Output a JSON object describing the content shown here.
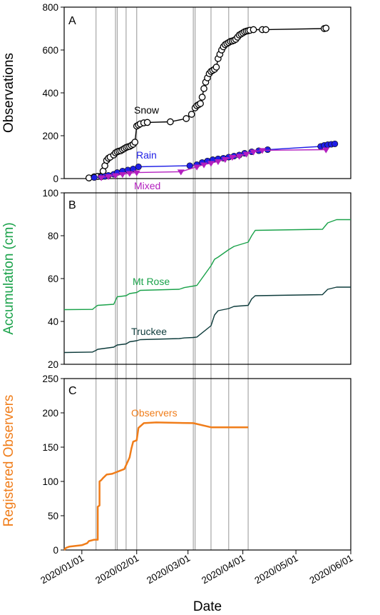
{
  "x_axis": {
    "label": "Date",
    "tick_labels": [
      "2020/01/01",
      "2020/02/01",
      "2020/03/01",
      "2020/04/01",
      "2020/05/01",
      "2020/06/01"
    ],
    "range": [
      "2019-12-22",
      "2020-06-01"
    ]
  },
  "event_lines": [
    "2020-01-09",
    "2020-01-20",
    "2020-01-21",
    "2020-01-26",
    "2020-02-01",
    "2020-03-04",
    "2020-03-05",
    "2020-03-14",
    "2020-03-24",
    "2020-04-04"
  ],
  "colors": {
    "snow": "#000000",
    "rain": "#1f1fe6",
    "mixed": "#b31fbf",
    "mt_rose": "#1aa24a",
    "truckee": "#0d3b3b",
    "observers": "#f07d1a",
    "event_line": "#a6a6a6"
  },
  "chart_data": [
    {
      "panel": "A",
      "type": "scatter",
      "ylabel": "Observations",
      "ylim": [
        0,
        800
      ],
      "yticks": [
        "0",
        "200",
        "400",
        "600",
        "800"
      ],
      "series": [
        {
          "name": "Snow",
          "marker": "circle-open",
          "x": [
            "2020-01-05",
            "2020-01-08",
            "2020-01-10",
            "2020-01-12",
            "2020-01-13",
            "2020-01-14",
            "2020-01-15",
            "2020-01-16",
            "2020-01-17",
            "2020-01-19",
            "2020-01-20",
            "2020-01-21",
            "2020-01-22",
            "2020-01-23",
            "2020-01-24",
            "2020-01-25",
            "2020-01-26",
            "2020-01-27",
            "2020-01-28",
            "2020-01-29",
            "2020-01-30",
            "2020-01-31",
            "2020-02-01",
            "2020-02-02",
            "2020-02-03",
            "2020-02-05",
            "2020-02-07",
            "2020-02-20",
            "2020-02-29",
            "2020-03-03",
            "2020-03-05",
            "2020-03-06",
            "2020-03-07",
            "2020-03-08",
            "2020-03-09",
            "2020-03-10",
            "2020-03-11",
            "2020-03-12",
            "2020-03-13",
            "2020-03-14",
            "2020-03-15",
            "2020-03-16",
            "2020-03-17",
            "2020-03-18",
            "2020-03-19",
            "2020-03-20",
            "2020-03-21",
            "2020-03-22",
            "2020-03-23",
            "2020-03-24",
            "2020-03-25",
            "2020-03-26",
            "2020-03-27",
            "2020-03-28",
            "2020-03-29",
            "2020-03-30",
            "2020-03-31",
            "2020-04-01",
            "2020-04-02",
            "2020-04-03",
            "2020-04-04",
            "2020-04-05",
            "2020-04-07",
            "2020-04-12",
            "2020-04-14",
            "2020-05-17",
            "2020-05-18"
          ],
          "y": [
            3,
            8,
            10,
            12,
            35,
            60,
            85,
            95,
            100,
            110,
            120,
            125,
            128,
            130,
            135,
            140,
            145,
            148,
            150,
            155,
            160,
            170,
            245,
            250,
            255,
            260,
            262,
            265,
            280,
            300,
            330,
            340,
            345,
            350,
            380,
            420,
            450,
            470,
            490,
            500,
            505,
            510,
            520,
            560,
            580,
            600,
            615,
            625,
            630,
            635,
            640,
            642,
            645,
            650,
            660,
            670,
            675,
            680,
            685,
            688,
            690,
            692,
            695,
            695,
            695,
            700,
            702
          ]
        },
        {
          "name": "Rain",
          "marker": "circle-filled",
          "x": [
            "2020-01-08",
            "2020-01-12",
            "2020-01-14",
            "2020-01-16",
            "2020-01-19",
            "2020-01-21",
            "2020-01-24",
            "2020-01-27",
            "2020-01-30",
            "2020-02-02",
            "2020-03-02",
            "2020-03-06",
            "2020-03-09",
            "2020-03-12",
            "2020-03-15",
            "2020-03-18",
            "2020-03-21",
            "2020-03-24",
            "2020-03-27",
            "2020-03-30",
            "2020-04-02",
            "2020-04-06",
            "2020-04-10",
            "2020-04-15",
            "2020-05-15",
            "2020-05-17",
            "2020-05-19",
            "2020-05-21",
            "2020-05-23"
          ],
          "y": [
            5,
            8,
            10,
            15,
            20,
            28,
            35,
            40,
            45,
            55,
            60,
            65,
            75,
            82,
            88,
            92,
            95,
            100,
            105,
            110,
            118,
            125,
            130,
            135,
            150,
            155,
            158,
            160,
            162
          ]
        },
        {
          "name": "Mixed",
          "marker": "triangle-down",
          "x": [
            "2020-01-12",
            "2020-01-16",
            "2020-01-20",
            "2020-01-24",
            "2020-01-28",
            "2020-02-01",
            "2020-02-26",
            "2020-03-06",
            "2020-03-10",
            "2020-03-14",
            "2020-03-18",
            "2020-03-22",
            "2020-03-26",
            "2020-03-30",
            "2020-04-03",
            "2020-04-07",
            "2020-04-12",
            "2020-05-18"
          ],
          "y": [
            5,
            10,
            15,
            20,
            25,
            28,
            32,
            55,
            65,
            72,
            80,
            90,
            100,
            105,
            115,
            125,
            132,
            135
          ]
        }
      ]
    },
    {
      "panel": "B",
      "type": "line",
      "ylabel": "Accumulation (cm)",
      "ylim": [
        20,
        100
      ],
      "yticks": [
        "20",
        "40",
        "60",
        "80",
        "100"
      ],
      "series": [
        {
          "name": "Mt Rose",
          "x": [
            "2019-12-22",
            "2020-01-07",
            "2020-01-09",
            "2020-01-10",
            "2020-01-19",
            "2020-01-21",
            "2020-01-26",
            "2020-01-28",
            "2020-02-01",
            "2020-02-03",
            "2020-02-25",
            "2020-02-28",
            "2020-03-04",
            "2020-03-06",
            "2020-03-14",
            "2020-03-16",
            "2020-03-18",
            "2020-03-24",
            "2020-03-27",
            "2020-04-04",
            "2020-04-06",
            "2020-04-08",
            "2020-05-16",
            "2020-05-19",
            "2020-05-24",
            "2020-06-01"
          ],
          "y": [
            45.5,
            45.6,
            47,
            47.5,
            48,
            51.5,
            52,
            53,
            53.5,
            54.5,
            55,
            55.8,
            56.5,
            56.8,
            66,
            69,
            70,
            73.5,
            75,
            77,
            80,
            82.5,
            83,
            86,
            87.5,
            87.5
          ]
        },
        {
          "name": "Truckee",
          "x": [
            "2019-12-22",
            "2020-01-07",
            "2020-01-09",
            "2020-01-10",
            "2020-01-19",
            "2020-01-21",
            "2020-01-26",
            "2020-01-28",
            "2020-02-01",
            "2020-02-03",
            "2020-02-25",
            "2020-02-28",
            "2020-03-04",
            "2020-03-06",
            "2020-03-14",
            "2020-03-16",
            "2020-03-18",
            "2020-03-24",
            "2020-03-27",
            "2020-04-04",
            "2020-04-06",
            "2020-04-08",
            "2020-05-16",
            "2020-05-19",
            "2020-05-24",
            "2020-06-01"
          ],
          "y": [
            25.5,
            25.7,
            26.5,
            27,
            28,
            29,
            29.5,
            30.5,
            31,
            31.5,
            32,
            32.3,
            32.5,
            32.7,
            38,
            43,
            45,
            46,
            47,
            47.5,
            50.5,
            52,
            52.5,
            55,
            56,
            56
          ]
        }
      ]
    },
    {
      "panel": "C",
      "type": "line",
      "ylabel": "Registered Observers",
      "ylim": [
        0,
        250
      ],
      "yticks": [
        "0",
        "50",
        "100",
        "150",
        "200",
        "250"
      ],
      "series": [
        {
          "name": "Observers",
          "x": [
            "2019-12-22",
            "2019-12-23",
            "2019-12-25",
            "2020-01-01",
            "2020-01-04",
            "2020-01-05",
            "2020-01-08",
            "2020-01-10",
            "2020-01-10",
            "2020-01-11",
            "2020-01-11",
            "2020-01-12",
            "2020-01-13",
            "2020-01-15",
            "2020-01-18",
            "2020-01-20",
            "2020-01-22",
            "2020-01-25",
            "2020-01-28",
            "2020-01-29",
            "2020-01-30",
            "2020-02-01",
            "2020-02-02",
            "2020-02-05",
            "2020-02-12",
            "2020-03-04",
            "2020-03-14",
            "2020-04-04"
          ],
          "y": [
            0,
            3,
            5,
            7,
            10,
            13,
            15,
            15,
            63,
            65,
            100,
            102,
            105,
            110,
            111,
            113,
            115,
            118,
            135,
            148,
            158,
            160,
            178,
            185,
            186,
            185,
            179,
            179
          ]
        }
      ]
    }
  ],
  "labels": {
    "panel_a": "A",
    "panel_b": "B",
    "panel_c": "C",
    "snow": "Snow",
    "rain": "Rain",
    "mixed": "Mixed",
    "mt_rose": "Mt Rose",
    "truckee": "Truckee",
    "observers": "Observers"
  }
}
